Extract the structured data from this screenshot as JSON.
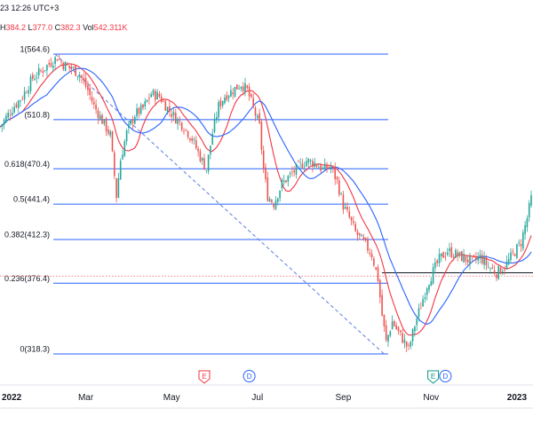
{
  "header": {
    "datetime": "23 12:26 UTC+3",
    "ohlc_prefix": "H",
    "high": "384.2",
    "low_label": "L",
    "low": "377.0",
    "close_label": "C",
    "close": "382.3",
    "vol_label": "Vol",
    "volume": "542.311K"
  },
  "colors": {
    "up": "#26a69a",
    "down": "#ef5350",
    "fib_line": "#2962ff",
    "ma_fast": "#f23645",
    "ma_slow": "#2962ff",
    "dashed_trend": "#5b7fe0",
    "price_ref": "#f23645",
    "support": "#131722",
    "event_e": "#f23645",
    "event_d": "#2962ff",
    "event_e_green": "#089981"
  },
  "chart_data": {
    "type": "candlestick",
    "ylim": [
      305,
      575
    ],
    "fib_levels": [
      {
        "ratio": "1",
        "price": 564.6,
        "label": "1(564.6)"
      },
      {
        "ratio": "",
        "price": 510.8,
        "label": "(510.8)"
      },
      {
        "ratio": "0.618",
        "price": 470.4,
        "label": "0.618(470.4)"
      },
      {
        "ratio": "0.5",
        "price": 441.4,
        "label": "0.5(441.4)"
      },
      {
        "ratio": "0.382",
        "price": 412.3,
        "label": "0.382(412.3)"
      },
      {
        "ratio": "0.236",
        "price": 376.4,
        "label": "0.236(376.4)"
      },
      {
        "ratio": "0",
        "price": 318.3,
        "label": "0(318.3)"
      }
    ],
    "x_axis_labels": [
      "2022",
      "Mar",
      "May",
      "Jul",
      "Sep",
      "Nov",
      "2023"
    ],
    "x_axis_positions_index": [
      0,
      42,
      84,
      126,
      168,
      211,
      253
    ],
    "events": [
      {
        "kind": "E",
        "index": 100
      },
      {
        "kind": "D",
        "index": 122
      },
      {
        "kind": "E",
        "index": 212
      },
      {
        "kind": "D",
        "index": 218
      }
    ],
    "support_price": 385.0,
    "reference_price": 382.3,
    "trend_from": {
      "index": 27,
      "price": 564.6
    },
    "trend_to": {
      "index": 188,
      "price": 318.3
    },
    "anchor_points": [
      [
        0,
        505
      ],
      [
        6,
        520
      ],
      [
        11,
        530
      ],
      [
        16,
        545
      ],
      [
        21,
        552
      ],
      [
        25,
        558
      ],
      [
        28,
        562
      ],
      [
        31,
        556
      ],
      [
        35,
        553
      ],
      [
        39,
        548
      ],
      [
        43,
        535
      ],
      [
        46,
        522
      ],
      [
        50,
        510
      ],
      [
        54,
        498
      ],
      [
        57,
        448
      ],
      [
        59,
        478
      ],
      [
        62,
        500
      ],
      [
        66,
        515
      ],
      [
        70,
        520
      ],
      [
        74,
        532
      ],
      [
        78,
        530
      ],
      [
        82,
        520
      ],
      [
        86,
        512
      ],
      [
        90,
        505
      ],
      [
        94,
        495
      ],
      [
        98,
        480
      ],
      [
        101,
        470
      ],
      [
        104,
        500
      ],
      [
        107,
        522
      ],
      [
        110,
        530
      ],
      [
        114,
        535
      ],
      [
        118,
        540
      ],
      [
        121,
        535
      ],
      [
        124,
        520
      ],
      [
        127,
        505
      ],
      [
        129,
        470
      ],
      [
        131,
        448
      ],
      [
        134,
        442
      ],
      [
        138,
        458
      ],
      [
        142,
        465
      ],
      [
        146,
        472
      ],
      [
        150,
        477
      ],
      [
        154,
        475
      ],
      [
        158,
        470
      ],
      [
        162,
        472
      ],
      [
        165,
        460
      ],
      [
        168,
        440
      ],
      [
        171,
        430
      ],
      [
        174,
        418
      ],
      [
        178,
        410
      ],
      [
        182,
        400
      ],
      [
        185,
        380
      ],
      [
        187,
        350
      ],
      [
        189,
        328
      ],
      [
        192,
        345
      ],
      [
        195,
        336
      ],
      [
        198,
        328
      ],
      [
        200,
        322
      ],
      [
        203,
        342
      ],
      [
        206,
        358
      ],
      [
        209,
        375
      ],
      [
        212,
        386
      ],
      [
        215,
        396
      ],
      [
        219,
        403
      ],
      [
        223,
        400
      ],
      [
        227,
        397
      ],
      [
        231,
        394
      ],
      [
        235,
        398
      ],
      [
        239,
        390
      ],
      [
        243,
        385
      ],
      [
        247,
        390
      ],
      [
        251,
        400
      ],
      [
        255,
        410
      ],
      [
        258,
        430
      ],
      [
        260,
        446
      ]
    ]
  }
}
